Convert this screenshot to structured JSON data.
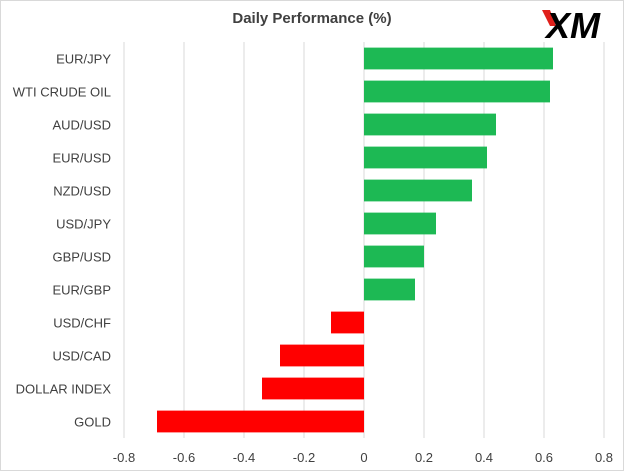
{
  "logo": {
    "text": "XM",
    "color": "#000000",
    "accent": "#e0201b"
  },
  "chart_data": {
    "type": "bar",
    "orientation": "horizontal",
    "title": "Daily Performance (%)",
    "xlabel": "",
    "ylabel": "",
    "xlim": [
      -0.8,
      0.8
    ],
    "xticks": [
      -0.8,
      -0.6,
      -0.4,
      -0.2,
      0,
      0.2,
      0.4,
      0.6,
      0.8
    ],
    "xtick_labels": [
      "-0.8",
      "-0.6",
      "-0.4",
      "-0.2",
      "0",
      "0.2",
      "0.4",
      "0.6",
      "0.8"
    ],
    "grid": true,
    "categories": [
      "EUR/JPY",
      "WTI CRUDE OIL",
      "AUD/USD",
      "EUR/USD",
      "NZD/USD",
      "USD/JPY",
      "GBP/USD",
      "EUR/GBP",
      "USD/CHF",
      "USD/CAD",
      "DOLLAR INDEX",
      "GOLD"
    ],
    "values": [
      0.63,
      0.62,
      0.44,
      0.41,
      0.36,
      0.24,
      0.2,
      0.17,
      -0.11,
      -0.28,
      -0.34,
      -0.69
    ],
    "colors": {
      "positive": "#1db954",
      "negative": "#ff0000",
      "grid": "#d9d9d9"
    }
  }
}
